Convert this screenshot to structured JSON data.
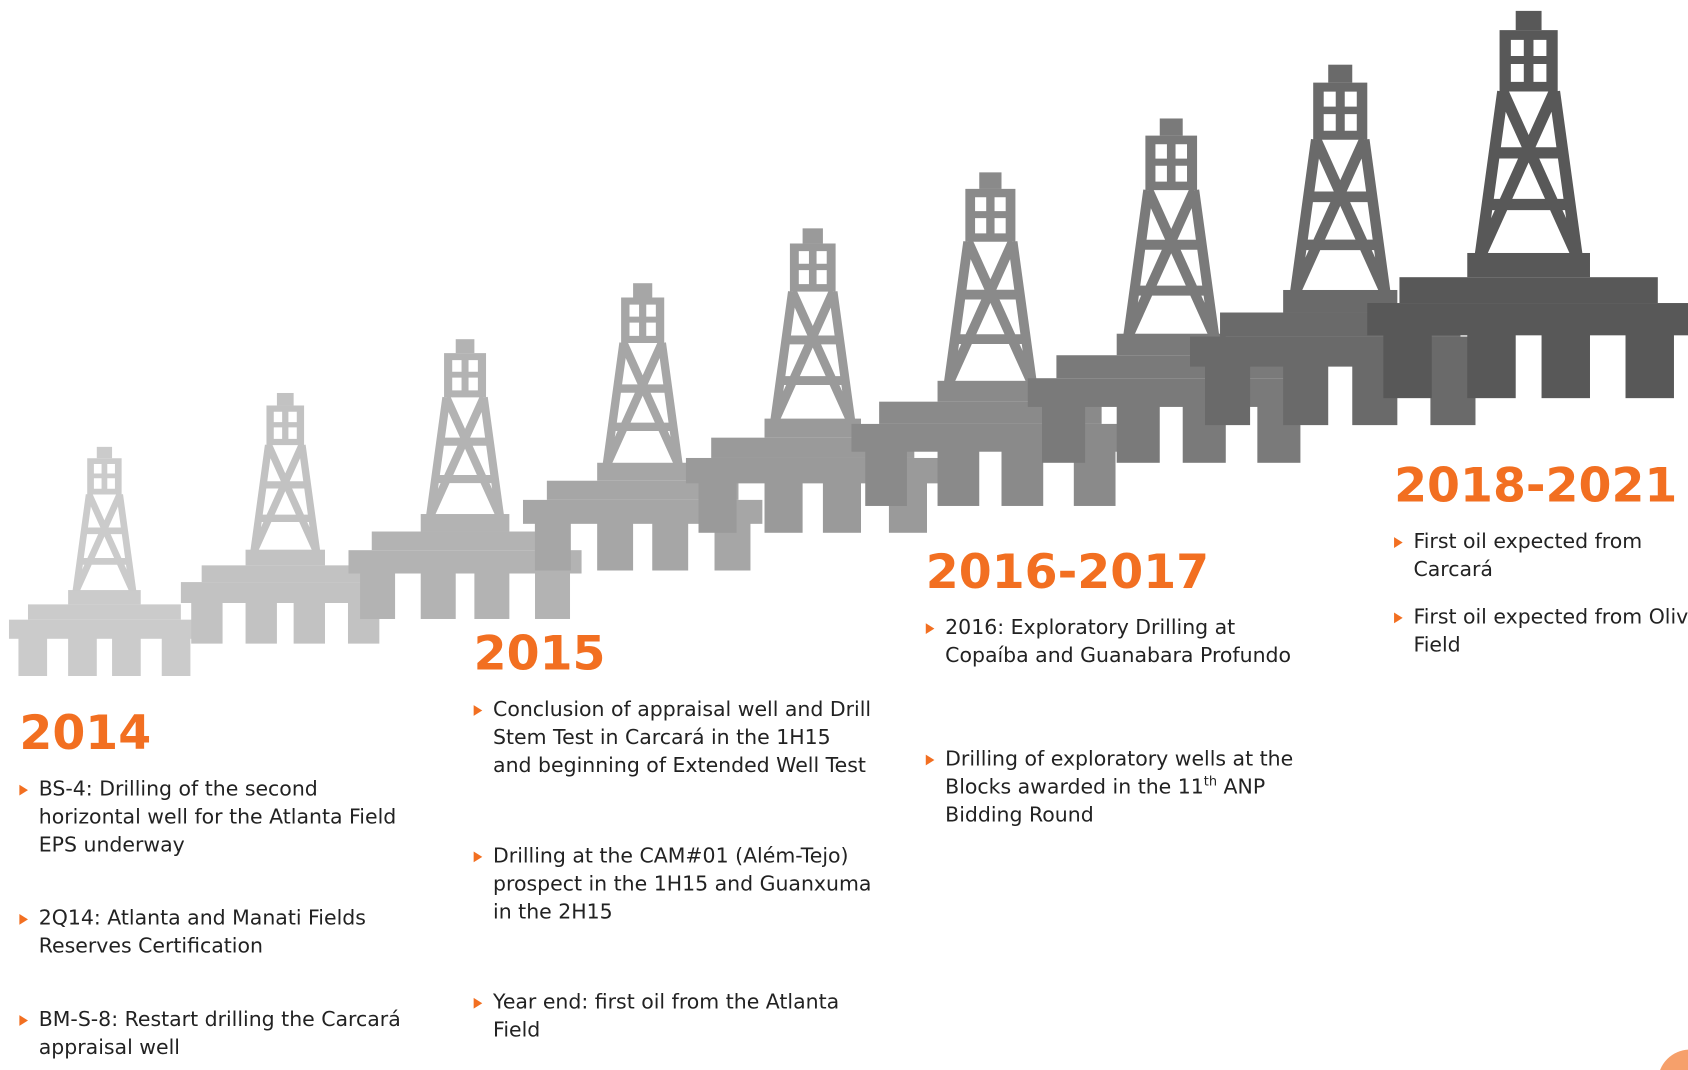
{
  "timeline": [
    {
      "year": "2014",
      "items": [
        {
          "text": "BS-4: Drilling of the second horizontal well for the Atlanta Field EPS underway"
        },
        {
          "text": "2Q14: Atlanta and Manati Fields Reserves Certification"
        },
        {
          "text": "BM-S-8: Restart drilling the Carcará appraisal well"
        }
      ]
    },
    {
      "year": "2015",
      "items": [
        {
          "text": "Conclusion of appraisal well and Drill Stem Test in Carcará in the 1H15 and beginning of Extended Well Test"
        },
        {
          "text": "Drilling at the CAM#01 (Além-Tejo) prospect in the 1H15 and Guanxuma in the 2H15"
        },
        {
          "text": "Year end: first oil from the Atlanta Field"
        }
      ]
    },
    {
      "year": "2016-2017",
      "items": [
        {
          "text": "2016: Exploratory Drilling at Copaíba and Guanabara Profundo"
        },
        {
          "text": "Drilling of exploratory wells at the Blocks awarded in the 11",
          "sup": "th",
          "tail": " ANP Bidding Round"
        }
      ]
    },
    {
      "year": "2018-2021",
      "items": [
        {
          "text": "First oil expected from Carcará"
        },
        {
          "text": "First oil expected from Oliva Field"
        }
      ]
    }
  ]
}
